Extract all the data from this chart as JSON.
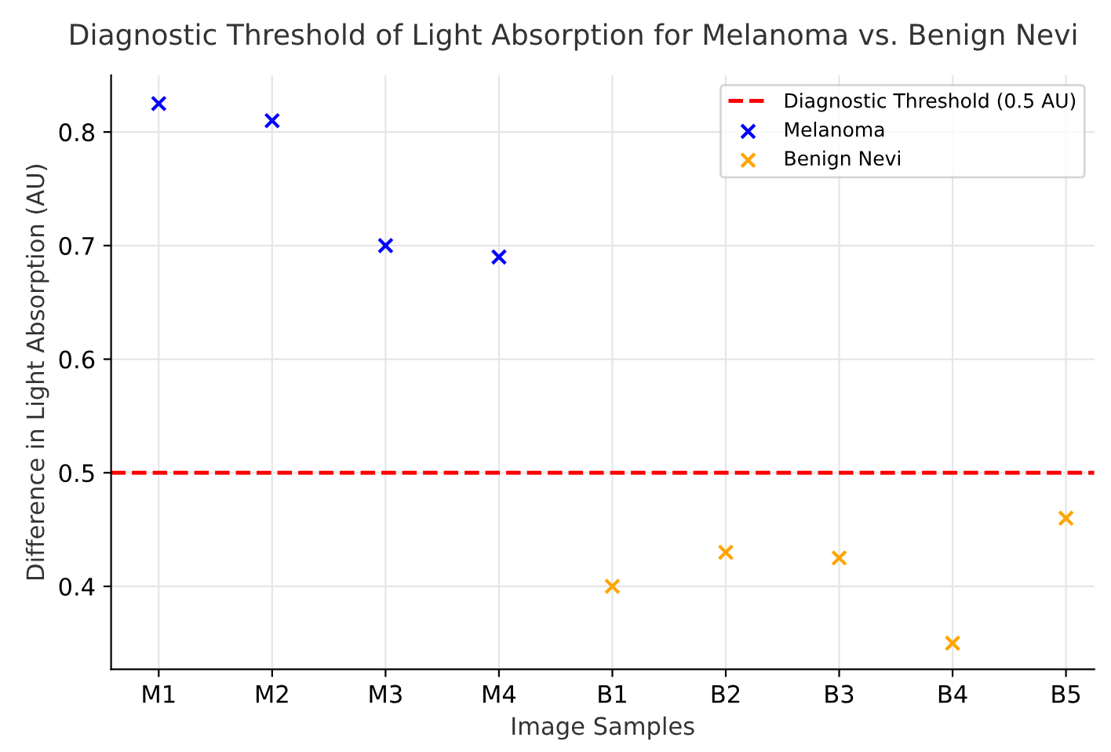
{
  "chart_data": {
    "type": "scatter",
    "title": "Diagnostic Threshold of Light Absorption for Melanoma vs. Benign Nevi",
    "xlabel": "Image Samples",
    "ylabel": "Difference in Light Absorption (AU)",
    "categories": [
      "M1",
      "M2",
      "M3",
      "M4",
      "B1",
      "B2",
      "B3",
      "B4",
      "B5"
    ],
    "series": [
      {
        "name": "Melanoma",
        "color": "#0000ff",
        "values": [
          0.825,
          0.81,
          0.7,
          0.69,
          null,
          null,
          null,
          null,
          null
        ]
      },
      {
        "name": "Benign Nevi",
        "color": "#ffa500",
        "values": [
          null,
          null,
          null,
          null,
          0.4,
          0.43,
          0.425,
          0.35,
          0.46
        ]
      }
    ],
    "ref_lines": [
      {
        "axis": "y",
        "value": 0.5,
        "label": "Diagnostic Threshold (0.5 AU)",
        "color": "#ff0000",
        "line_style": "dashed"
      }
    ],
    "ylim": [
      0.327,
      0.85
    ],
    "yticks": [
      0.4,
      0.5,
      0.6,
      0.7,
      0.8
    ],
    "marker": "cross",
    "grid": true,
    "legend": "top right"
  }
}
